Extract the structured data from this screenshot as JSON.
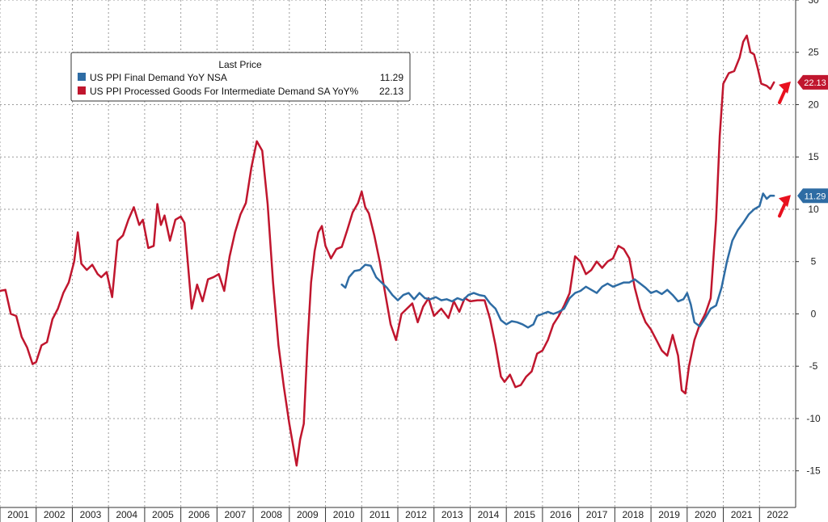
{
  "chart_data": {
    "type": "line",
    "title": "",
    "xlabel": "",
    "ylabel": "",
    "ylim": [
      -18.5,
      30
    ],
    "yticks": [
      -15,
      -10,
      -5,
      0,
      5,
      10,
      15,
      20,
      25,
      30
    ],
    "xlim": [
      2001.0,
      2023.0
    ],
    "xticks": [
      {
        "label": "2001",
        "x": 2001.0
      },
      {
        "label": "2002",
        "x": 2002.0
      },
      {
        "label": "2003",
        "x": 2003.0
      },
      {
        "label": "2004",
        "x": 2004.0
      },
      {
        "label": "2005",
        "x": 2005.0
      },
      {
        "label": "2006",
        "x": 2006.0
      },
      {
        "label": "2007",
        "x": 2007.0
      },
      {
        "label": "2008",
        "x": 2008.0
      },
      {
        "label": "2009",
        "x": 2009.0
      },
      {
        "label": "2010",
        "x": 2010.0
      },
      {
        "label": "2011",
        "x": 2011.0
      },
      {
        "label": "2012",
        "x": 2012.0
      },
      {
        "label": "2013",
        "x": 2013.0
      },
      {
        "label": "2014",
        "x": 2014.0
      },
      {
        "label": "2015",
        "x": 2015.0
      },
      {
        "label": "2016",
        "x": 2016.0
      },
      {
        "label": "2017",
        "x": 2017.0
      },
      {
        "label": "2018",
        "x": 2018.0
      },
      {
        "label": "2019",
        "x": 2019.0
      },
      {
        "label": "2020",
        "x": 2020.0
      },
      {
        "label": "2021",
        "x": 2021.0
      },
      {
        "label": "2022",
        "x": 2022.0
      }
    ],
    "grid": true,
    "legend": {
      "title": "Last Price",
      "position": "top-left",
      "entries": [
        {
          "name": "US PPI Final Demand YoY NSA",
          "value": "11.29",
          "color": "#2e6ca4"
        },
        {
          "name": "US PPI Processed Goods For Intermediate Demand SA YoY%",
          "value": "22.13",
          "color": "#c0162e"
        }
      ]
    },
    "last_value_labels": [
      {
        "series": "US PPI Processed Goods For Intermediate Demand SA YoY%",
        "text": "22.13",
        "value": 22.13,
        "color": "#c0162e"
      },
      {
        "series": "US PPI Final Demand YoY NSA",
        "text": "11.29",
        "value": 11.29,
        "color": "#2e6ca4"
      }
    ],
    "series": [
      {
        "name": "US PPI Processed Goods For Intermediate Demand SA YoY%",
        "color": "#c0162e",
        "points": [
          [
            2001.0,
            2.2
          ],
          [
            2001.15,
            2.3
          ],
          [
            2001.3,
            0.0
          ],
          [
            2001.45,
            -0.2
          ],
          [
            2001.6,
            -2.2
          ],
          [
            2001.75,
            -3.2
          ],
          [
            2001.9,
            -4.8
          ],
          [
            2002.0,
            -4.6
          ],
          [
            2002.15,
            -3.0
          ],
          [
            2002.3,
            -2.7
          ],
          [
            2002.45,
            -0.5
          ],
          [
            2002.6,
            0.5
          ],
          [
            2002.75,
            2.0
          ],
          [
            2002.9,
            3.0
          ],
          [
            2003.05,
            5.0
          ],
          [
            2003.15,
            7.8
          ],
          [
            2003.25,
            4.8
          ],
          [
            2003.4,
            4.2
          ],
          [
            2003.55,
            4.7
          ],
          [
            2003.7,
            3.8
          ],
          [
            2003.8,
            3.5
          ],
          [
            2003.95,
            4.0
          ],
          [
            2004.1,
            1.6
          ],
          [
            2004.25,
            7.0
          ],
          [
            2004.4,
            7.5
          ],
          [
            2004.55,
            9.0
          ],
          [
            2004.7,
            10.2
          ],
          [
            2004.85,
            8.5
          ],
          [
            2004.95,
            9.0
          ],
          [
            2005.1,
            6.3
          ],
          [
            2005.25,
            6.5
          ],
          [
            2005.35,
            10.5
          ],
          [
            2005.45,
            8.5
          ],
          [
            2005.55,
            9.4
          ],
          [
            2005.7,
            7.0
          ],
          [
            2005.85,
            9.0
          ],
          [
            2006.0,
            9.3
          ],
          [
            2006.1,
            8.7
          ],
          [
            2006.3,
            0.5
          ],
          [
            2006.45,
            2.8
          ],
          [
            2006.6,
            1.2
          ],
          [
            2006.75,
            3.3
          ],
          [
            2006.9,
            3.5
          ],
          [
            2007.05,
            3.8
          ],
          [
            2007.2,
            2.2
          ],
          [
            2007.35,
            5.5
          ],
          [
            2007.5,
            7.8
          ],
          [
            2007.65,
            9.5
          ],
          [
            2007.8,
            10.6
          ],
          [
            2007.95,
            14.0
          ],
          [
            2008.1,
            16.5
          ],
          [
            2008.25,
            15.6
          ],
          [
            2008.4,
            10.5
          ],
          [
            2008.55,
            3.0
          ],
          [
            2008.7,
            -3.0
          ],
          [
            2008.85,
            -7.0
          ],
          [
            2009.0,
            -10.5
          ],
          [
            2009.1,
            -12.5
          ],
          [
            2009.2,
            -14.5
          ],
          [
            2009.3,
            -12.0
          ],
          [
            2009.4,
            -10.5
          ],
          [
            2009.5,
            -3.0
          ],
          [
            2009.6,
            3.0
          ],
          [
            2009.7,
            6.0
          ],
          [
            2009.8,
            7.8
          ],
          [
            2009.9,
            8.4
          ],
          [
            2010.0,
            6.5
          ],
          [
            2010.15,
            5.3
          ],
          [
            2010.3,
            6.2
          ],
          [
            2010.45,
            6.4
          ],
          [
            2010.6,
            8.0
          ],
          [
            2010.75,
            9.7
          ],
          [
            2010.9,
            10.6
          ],
          [
            2011.0,
            11.7
          ],
          [
            2011.1,
            10.2
          ],
          [
            2011.2,
            9.6
          ],
          [
            2011.35,
            7.5
          ],
          [
            2011.5,
            5.0
          ],
          [
            2011.65,
            2.0
          ],
          [
            2011.8,
            -1.0
          ],
          [
            2011.95,
            -2.5
          ],
          [
            2012.1,
            0.0
          ],
          [
            2012.25,
            0.5
          ],
          [
            2012.4,
            1.0
          ],
          [
            2012.55,
            -0.8
          ],
          [
            2012.7,
            0.7
          ],
          [
            2012.85,
            1.5
          ],
          [
            2013.0,
            -0.2
          ],
          [
            2013.2,
            0.5
          ],
          [
            2013.4,
            -0.4
          ],
          [
            2013.55,
            1.2
          ],
          [
            2013.7,
            0.2
          ],
          [
            2013.85,
            1.5
          ],
          [
            2014.0,
            1.2
          ],
          [
            2014.2,
            1.3
          ],
          [
            2014.4,
            1.3
          ],
          [
            2014.55,
            -0.5
          ],
          [
            2014.7,
            -3.0
          ],
          [
            2014.85,
            -6.0
          ],
          [
            2014.95,
            -6.5
          ],
          [
            2015.1,
            -5.8
          ],
          [
            2015.25,
            -7.0
          ],
          [
            2015.4,
            -6.8
          ],
          [
            2015.55,
            -6.0
          ],
          [
            2015.7,
            -5.5
          ],
          [
            2015.85,
            -3.8
          ],
          [
            2016.0,
            -3.5
          ],
          [
            2016.15,
            -2.5
          ],
          [
            2016.3,
            -1.0
          ],
          [
            2016.45,
            -0.2
          ],
          [
            2016.6,
            0.8
          ],
          [
            2016.75,
            2.0
          ],
          [
            2016.9,
            5.5
          ],
          [
            2017.05,
            5.0
          ],
          [
            2017.2,
            3.8
          ],
          [
            2017.35,
            4.2
          ],
          [
            2017.5,
            5.0
          ],
          [
            2017.65,
            4.4
          ],
          [
            2017.8,
            5.0
          ],
          [
            2017.95,
            5.3
          ],
          [
            2018.1,
            6.5
          ],
          [
            2018.25,
            6.2
          ],
          [
            2018.4,
            5.3
          ],
          [
            2018.55,
            2.5
          ],
          [
            2018.7,
            0.5
          ],
          [
            2018.85,
            -0.8
          ],
          [
            2019.0,
            -1.5
          ],
          [
            2019.15,
            -2.5
          ],
          [
            2019.3,
            -3.5
          ],
          [
            2019.45,
            -4.0
          ],
          [
            2019.6,
            -2.0
          ],
          [
            2019.75,
            -4.0
          ],
          [
            2019.85,
            -7.3
          ],
          [
            2019.95,
            -7.6
          ],
          [
            2020.05,
            -5.0
          ],
          [
            2020.2,
            -2.5
          ],
          [
            2020.35,
            -1.0
          ],
          [
            2020.5,
            0.0
          ],
          [
            2020.65,
            1.5
          ],
          [
            2020.8,
            9.0
          ],
          [
            2020.9,
            17.0
          ],
          [
            2021.0,
            22.0
          ],
          [
            2021.15,
            23.0
          ],
          [
            2021.3,
            23.2
          ],
          [
            2021.45,
            24.5
          ],
          [
            2021.55,
            26.0
          ],
          [
            2021.65,
            26.6
          ],
          [
            2021.75,
            25.0
          ],
          [
            2021.85,
            24.8
          ],
          [
            2021.95,
            23.5
          ],
          [
            2022.05,
            22.0
          ],
          [
            2022.2,
            21.8
          ],
          [
            2022.3,
            21.5
          ],
          [
            2022.4,
            22.13
          ]
        ]
      },
      {
        "name": "US PPI Final Demand YoY NSA",
        "color": "#2e6ca4",
        "points": [
          [
            2010.45,
            2.8
          ],
          [
            2010.55,
            2.5
          ],
          [
            2010.65,
            3.5
          ],
          [
            2010.8,
            4.1
          ],
          [
            2010.95,
            4.2
          ],
          [
            2011.1,
            4.7
          ],
          [
            2011.25,
            4.6
          ],
          [
            2011.4,
            3.5
          ],
          [
            2011.55,
            3.0
          ],
          [
            2011.7,
            2.5
          ],
          [
            2011.85,
            1.8
          ],
          [
            2012.0,
            1.3
          ],
          [
            2012.15,
            1.8
          ],
          [
            2012.3,
            2.0
          ],
          [
            2012.45,
            1.4
          ],
          [
            2012.6,
            2.0
          ],
          [
            2012.75,
            1.5
          ],
          [
            2012.9,
            1.4
          ],
          [
            2013.05,
            1.6
          ],
          [
            2013.2,
            1.3
          ],
          [
            2013.35,
            1.4
          ],
          [
            2013.5,
            1.2
          ],
          [
            2013.65,
            1.5
          ],
          [
            2013.8,
            1.3
          ],
          [
            2013.95,
            1.8
          ],
          [
            2014.1,
            2.0
          ],
          [
            2014.25,
            1.8
          ],
          [
            2014.4,
            1.7
          ],
          [
            2014.55,
            1.0
          ],
          [
            2014.7,
            0.5
          ],
          [
            2014.85,
            -0.6
          ],
          [
            2015.0,
            -1.0
          ],
          [
            2015.15,
            -0.7
          ],
          [
            2015.3,
            -0.8
          ],
          [
            2015.45,
            -1.0
          ],
          [
            2015.6,
            -1.3
          ],
          [
            2015.75,
            -1.0
          ],
          [
            2015.85,
            -0.2
          ],
          [
            2016.0,
            0.0
          ],
          [
            2016.15,
            0.2
          ],
          [
            2016.3,
            0.0
          ],
          [
            2016.45,
            0.2
          ],
          [
            2016.6,
            0.5
          ],
          [
            2016.75,
            1.5
          ],
          [
            2016.9,
            2.0
          ],
          [
            2017.05,
            2.2
          ],
          [
            2017.2,
            2.6
          ],
          [
            2017.35,
            2.3
          ],
          [
            2017.5,
            2.0
          ],
          [
            2017.65,
            2.6
          ],
          [
            2017.8,
            2.9
          ],
          [
            2017.95,
            2.6
          ],
          [
            2018.1,
            2.8
          ],
          [
            2018.25,
            3.0
          ],
          [
            2018.4,
            3.0
          ],
          [
            2018.55,
            3.3
          ],
          [
            2018.7,
            2.9
          ],
          [
            2018.85,
            2.5
          ],
          [
            2019.0,
            2.0
          ],
          [
            2019.15,
            2.2
          ],
          [
            2019.3,
            1.9
          ],
          [
            2019.45,
            2.3
          ],
          [
            2019.6,
            1.8
          ],
          [
            2019.75,
            1.2
          ],
          [
            2019.9,
            1.4
          ],
          [
            2020.0,
            2.0
          ],
          [
            2020.1,
            0.9
          ],
          [
            2020.2,
            -0.8
          ],
          [
            2020.35,
            -1.2
          ],
          [
            2020.5,
            -0.4
          ],
          [
            2020.65,
            0.5
          ],
          [
            2020.8,
            0.8
          ],
          [
            2020.95,
            2.5
          ],
          [
            2021.1,
            5.0
          ],
          [
            2021.25,
            7.0
          ],
          [
            2021.4,
            8.0
          ],
          [
            2021.55,
            8.7
          ],
          [
            2021.7,
            9.5
          ],
          [
            2021.85,
            10.0
          ],
          [
            2022.0,
            10.3
          ],
          [
            2022.1,
            11.5
          ],
          [
            2022.2,
            11.0
          ],
          [
            2022.3,
            11.3
          ],
          [
            2022.4,
            11.29
          ]
        ]
      }
    ]
  }
}
